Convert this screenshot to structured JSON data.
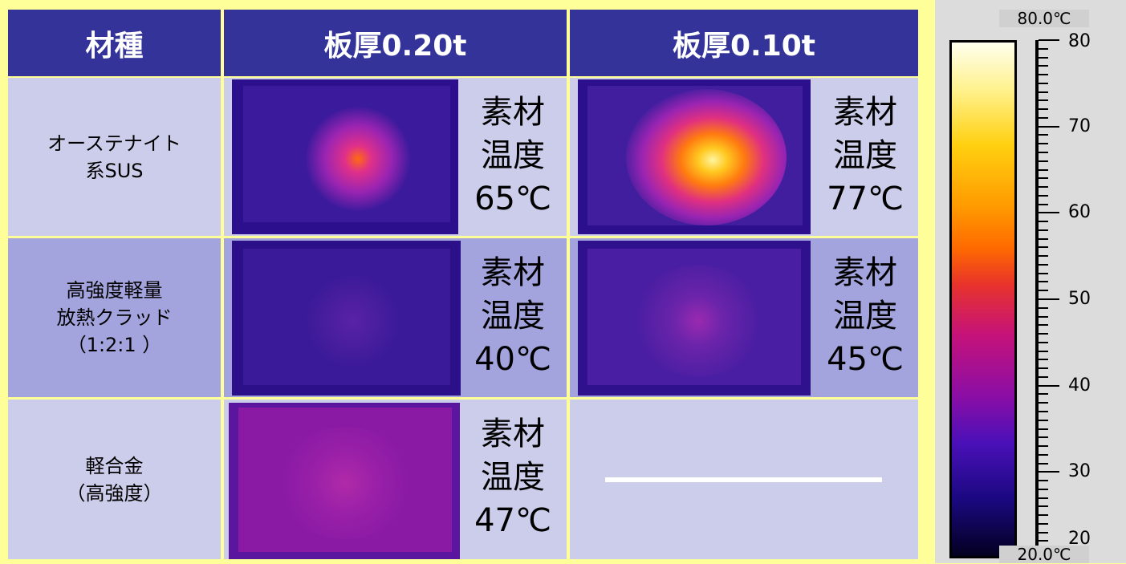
{
  "table": {
    "header": {
      "material": "材種",
      "col1": "板厚0.20t",
      "col2": "板厚0.10t"
    },
    "rows": [
      {
        "material_lines": [
          "オーステナイト",
          "系SUS"
        ],
        "t020": "素材\n温度\n65℃",
        "t010": "素材\n温度\n77℃"
      },
      {
        "material_lines": [
          "高強度軽量",
          "放熱クラッド",
          "（1:2:1 ）"
        ],
        "t020": "素材\n温度\n40℃",
        "t010": "素材\n温度\n45℃"
      },
      {
        "material_lines": [
          "軽合金",
          "（高強度）"
        ],
        "t020": "素材\n温度\n47℃",
        "t010": "──────"
      }
    ]
  },
  "scale": {
    "max_label": "80.0℃",
    "min_label": "20.0℃",
    "ticks": [
      "80",
      "70",
      "60",
      "50",
      "40",
      "30",
      "20"
    ],
    "colors": [
      "#ffffee",
      "#ffd010",
      "#ff6a00",
      "#c5127a",
      "#4a10b8",
      "#030020"
    ]
  }
}
